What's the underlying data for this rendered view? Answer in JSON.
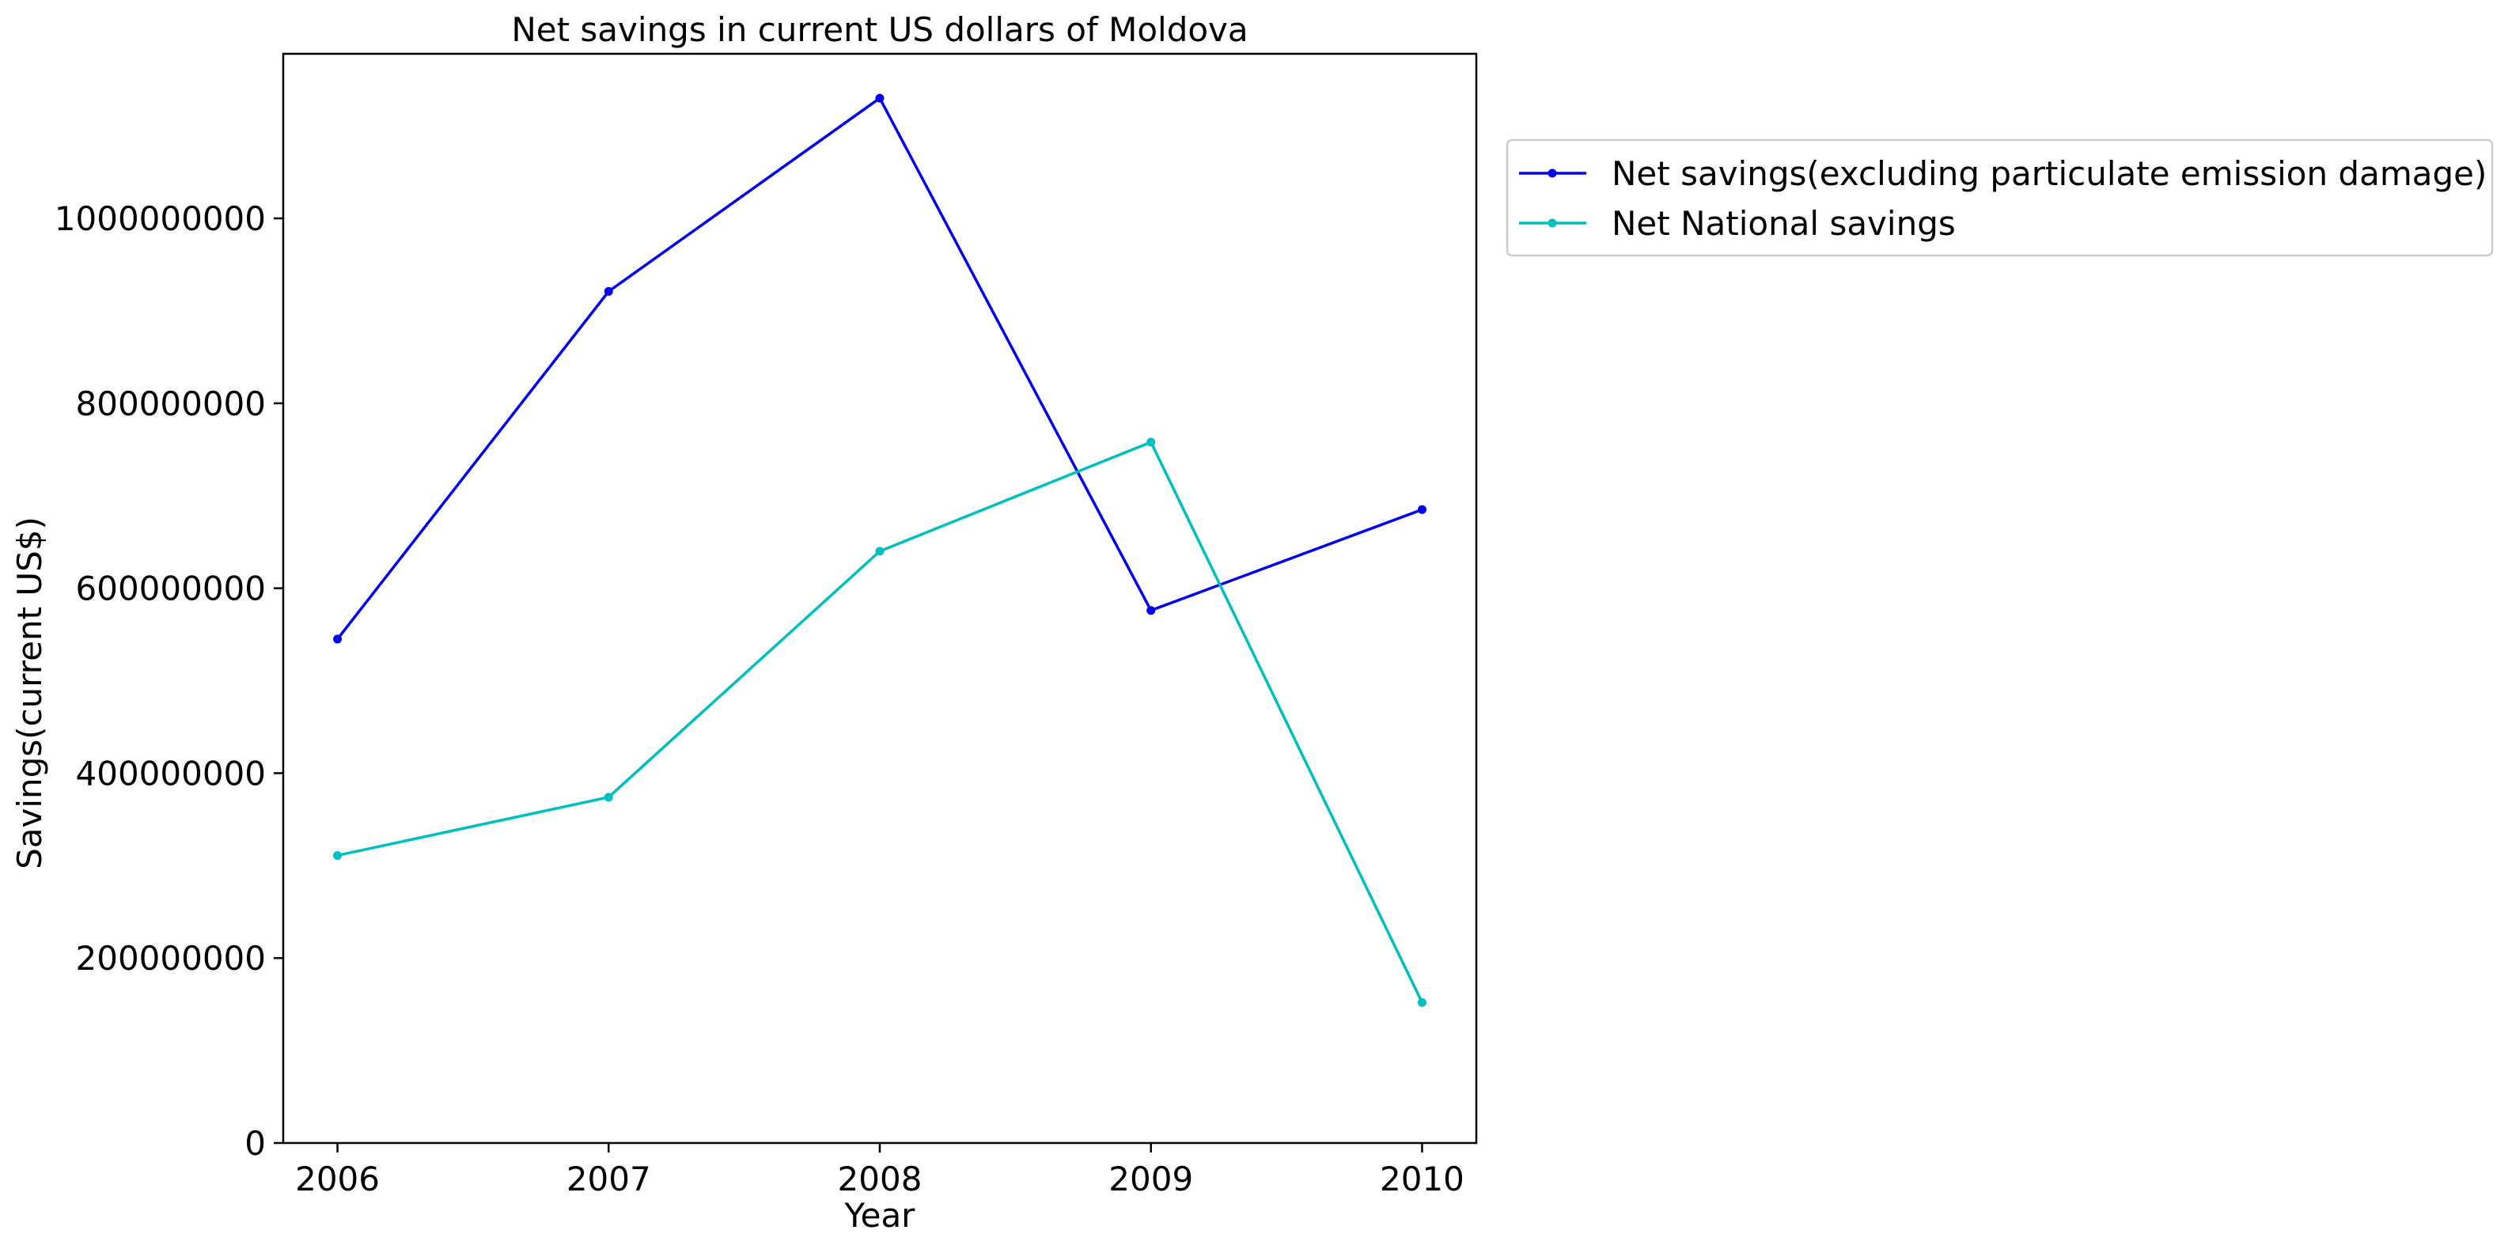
{
  "chart_data": {
    "type": "line",
    "title": "Net savings in current US dollars of Moldova",
    "xlabel": "Year",
    "ylabel": "Savings(current US$)",
    "x": [
      2006,
      2007,
      2008,
      2009,
      2010
    ],
    "xlim": [
      2005.8,
      2010.2
    ],
    "ylim": [
      0,
      1178000000
    ],
    "yticks": [
      0,
      200000000,
      400000000,
      600000000,
      800000000,
      1000000000
    ],
    "grid": false,
    "legend": "outside-top-right",
    "series": [
      {
        "name": "Net savings(excluding particulate emission damage)",
        "color": "#0000ee",
        "marker": "dot",
        "values": [
          545000000,
          921000000,
          1130000000,
          576000000,
          685000000
        ]
      },
      {
        "name": "Net National savings",
        "color": "#00bfbf",
        "marker": "dot",
        "values": [
          311000000,
          374000000,
          640000000,
          758000000,
          152000000
        ]
      }
    ]
  }
}
